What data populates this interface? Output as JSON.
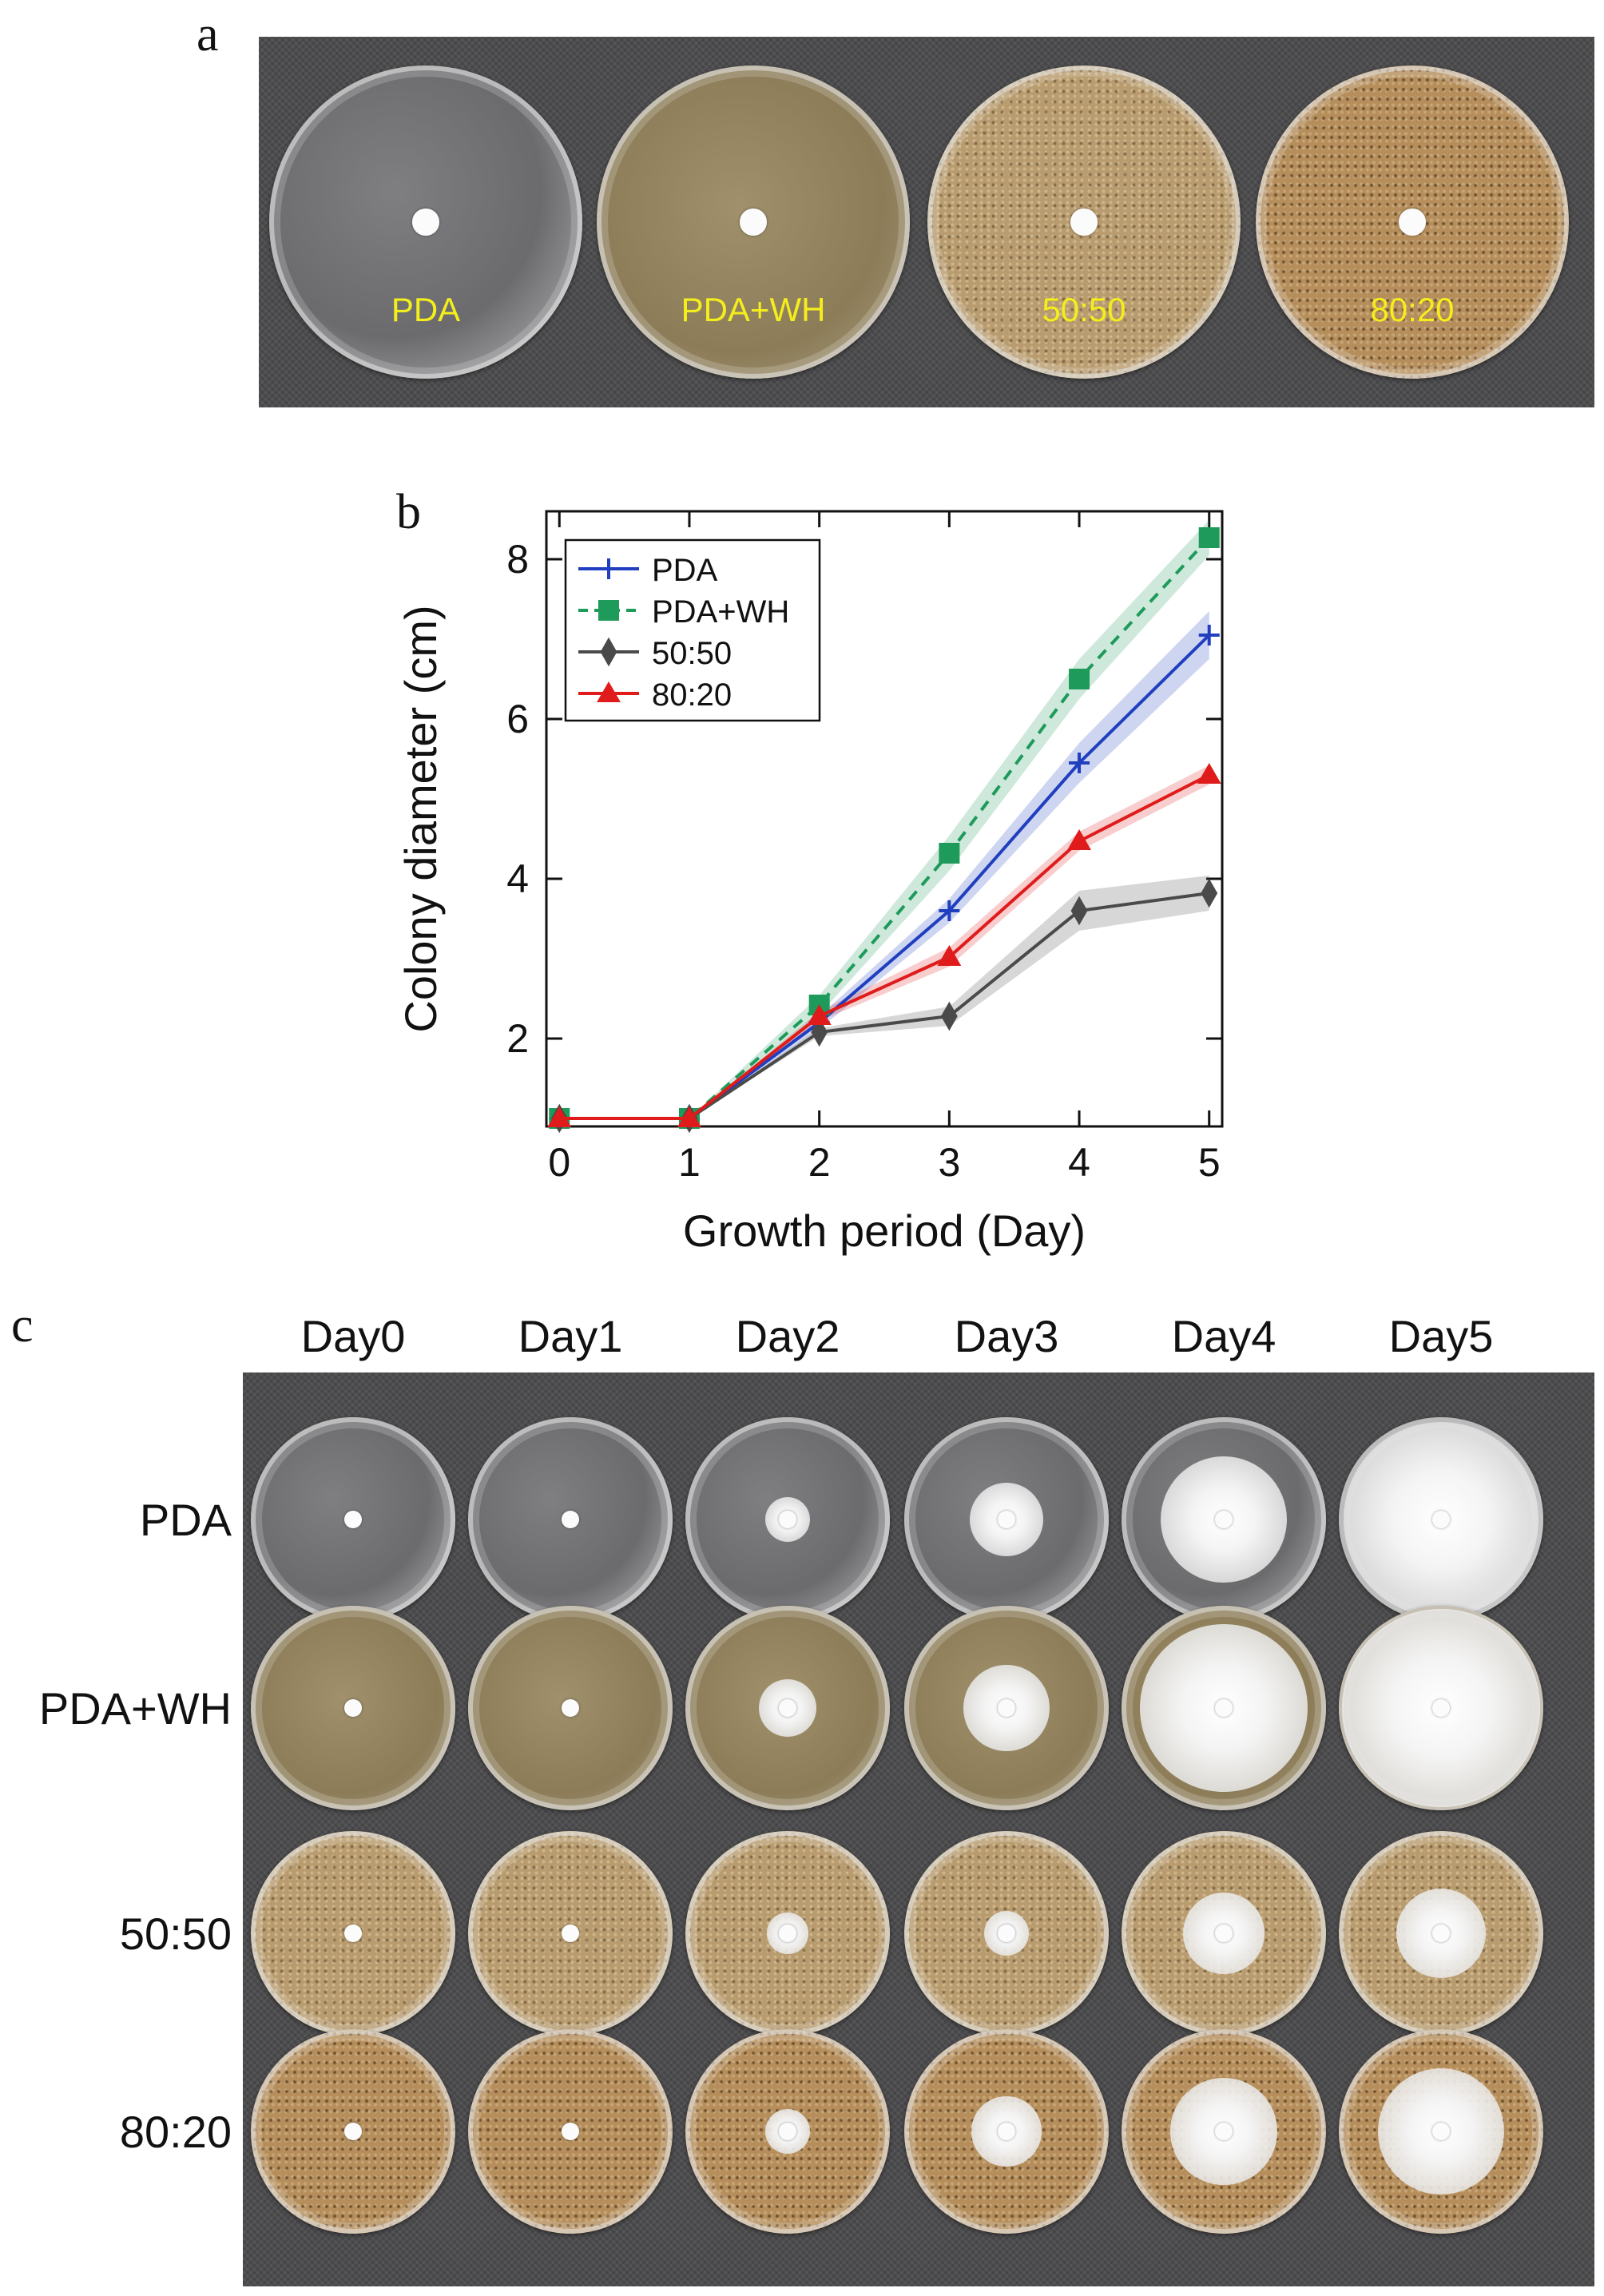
{
  "panels": {
    "a": "a",
    "b": "b",
    "c": "c"
  },
  "panel_a": {
    "dishes": [
      {
        "label": "PDA",
        "medium": "pda"
      },
      {
        "label": "PDA+WH",
        "medium": "wh"
      },
      {
        "label": "50:50",
        "medium": "5050"
      },
      {
        "label": "80:20",
        "medium": "8020"
      }
    ],
    "label_color": "#f4ee1c"
  },
  "chart_data": {
    "type": "line",
    "xlabel": "Growth period (Day)",
    "ylabel": "Colony diameter (cm)",
    "x": [
      0,
      1,
      2,
      3,
      4,
      5
    ],
    "xticks": [
      "0",
      "1",
      "2",
      "3",
      "4",
      "5"
    ],
    "yticks": [
      "2",
      "4",
      "6",
      "8"
    ],
    "xlim": [
      -0.1,
      5.1
    ],
    "ylim": [
      0.9,
      8.6
    ],
    "legend_position": "top-left",
    "series": [
      {
        "name": "PDA",
        "color": "#1f3fbf",
        "marker": "plus",
        "dash": "solid",
        "values": [
          1.0,
          1.0,
          2.2,
          3.6,
          5.45,
          7.05
        ],
        "band": [
          0,
          0,
          0.08,
          0.15,
          0.25,
          0.3
        ]
      },
      {
        "name": "PDA+WH",
        "color": "#1e9a5a",
        "marker": "square",
        "dash": "dashed",
        "values": [
          1.0,
          1.0,
          2.42,
          4.32,
          6.5,
          8.27
        ],
        "band": [
          0,
          0,
          0.12,
          0.22,
          0.25,
          0.22
        ]
      },
      {
        "name": "50:50",
        "color": "#4a4a4a",
        "marker": "diamond",
        "dash": "solid",
        "values": [
          1.0,
          1.0,
          2.08,
          2.28,
          3.6,
          3.82
        ],
        "band": [
          0,
          0,
          0.05,
          0.12,
          0.25,
          0.22
        ]
      },
      {
        "name": "80:20",
        "color": "#e01b1b",
        "marker": "triangle",
        "dash": "solid",
        "values": [
          1.0,
          1.0,
          2.28,
          3.02,
          4.47,
          5.3
        ],
        "band": [
          0,
          0,
          0.06,
          0.12,
          0.12,
          0.12
        ]
      }
    ]
  },
  "panel_c": {
    "columns": [
      "Day0",
      "Day1",
      "Day2",
      "Day3",
      "Day4",
      "Day5"
    ],
    "rows": [
      {
        "label": "PDA",
        "medium": "pda"
      },
      {
        "label": "PDA+WH",
        "medium": "wh"
      },
      {
        "label": "50:50",
        "medium": "5050"
      },
      {
        "label": "80:20",
        "medium": "8020"
      }
    ]
  }
}
